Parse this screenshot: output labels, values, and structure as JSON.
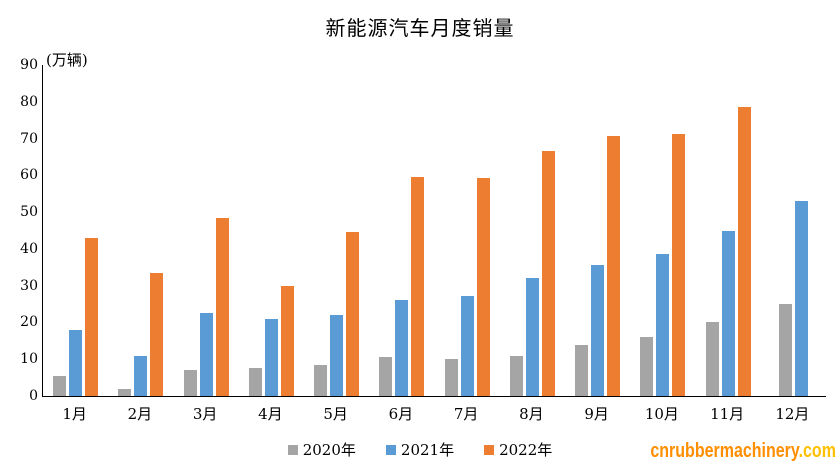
{
  "title": "新能源汽车月度销量",
  "y_axis_unit": "(万辆)",
  "watermark": {
    "main": "cnrubbermachinery",
    "suffix": ".com",
    "main_color": "#FF8F00",
    "suffix_color": "#FFC000"
  },
  "axis_color": "#000000",
  "chart_data": {
    "type": "bar",
    "title": "新能源汽车月度销量",
    "xlabel": "",
    "ylabel": "(万辆)",
    "ylim": [
      0,
      90
    ],
    "ytick_step": 10,
    "grid": false,
    "legend_position": "bottom",
    "categories": [
      "1月",
      "2月",
      "3月",
      "4月",
      "5月",
      "6月",
      "7月",
      "8月",
      "9月",
      "10月",
      "11月",
      "12月"
    ],
    "series": [
      {
        "name": "2020年",
        "color": "#A5A5A5",
        "values": [
          5.5,
          2,
          7,
          7.5,
          8.5,
          10.5,
          10,
          11,
          14,
          16,
          20,
          25
        ]
      },
      {
        "name": "2021年",
        "color": "#5B9BD5",
        "values": [
          18,
          11,
          22.5,
          21,
          22,
          26,
          27.2,
          32.2,
          35.7,
          38.5,
          45,
          53
        ]
      },
      {
        "name": "2022年",
        "color": "#ED7D31",
        "values": [
          43,
          33.5,
          48.5,
          30,
          44.7,
          59.5,
          59.2,
          66.5,
          70.8,
          71.3,
          78.5,
          null
        ]
      }
    ]
  }
}
